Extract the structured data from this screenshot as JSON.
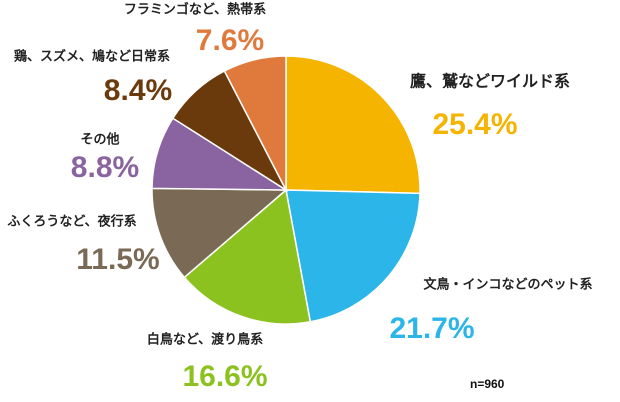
{
  "chart_data": {
    "type": "pie",
    "categories": [
      "鷹、鷲などワイルド系",
      "文鳥・インコなどのペット系",
      "白鳥など、渡り鳥系",
      "ふくろうなど、夜行系",
      "その他",
      "鶏、スズメ、鳩など日常系",
      "フラミンゴなど、熱帯系"
    ],
    "values": [
      25.4,
      21.7,
      16.6,
      11.5,
      8.8,
      8.4,
      7.6
    ],
    "value_labels": [
      "25.4%",
      "21.7%",
      "16.6%",
      "11.5%",
      "8.8%",
      "8.4%",
      "7.6%"
    ],
    "colors": [
      "#f5b400",
      "#2cb5e8",
      "#8cc21f",
      "#7a6a55",
      "#8a64a0",
      "#6b3a0c",
      "#e07a3c"
    ],
    "note": "n=960"
  }
}
